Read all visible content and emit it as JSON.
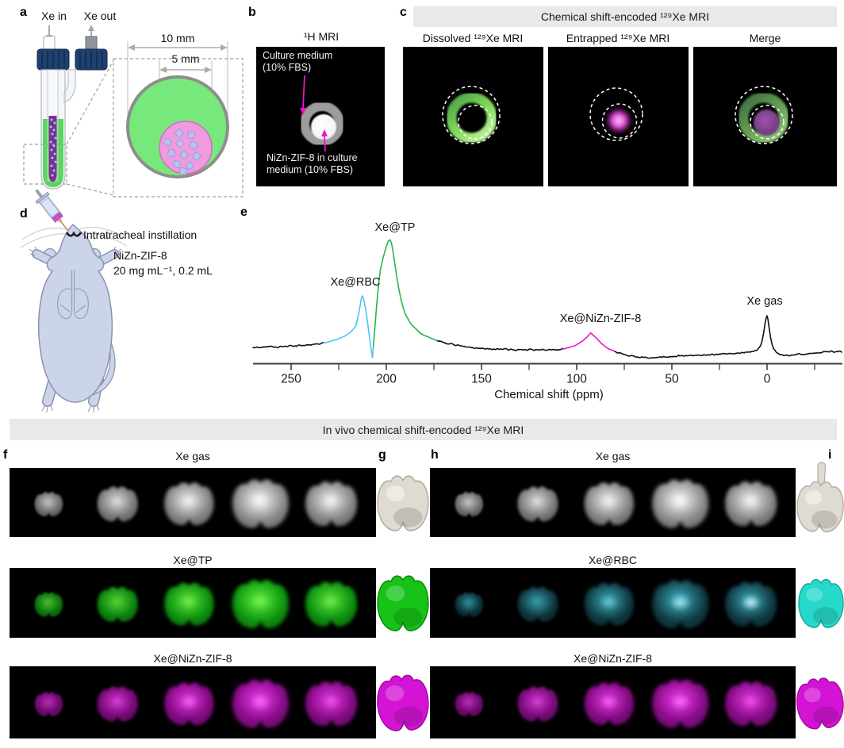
{
  "figure": {
    "panel_labels": {
      "a": "a",
      "b": "b",
      "c": "c",
      "d": "d",
      "e": "e",
      "f": "f",
      "g": "g",
      "h": "h",
      "i": "i"
    },
    "panel_a": {
      "xe_in": "Xe in",
      "xe_out": "Xe out",
      "outer_diameter": "10 mm",
      "inner_diameter": "5 mm"
    },
    "panel_b": {
      "title": "¹H MRI",
      "label_top_line1": "Culture medium",
      "label_top_line2": "(10% FBS)",
      "label_bottom_line1": "NiZn-ZIF-8 in culture",
      "label_bottom_line2": "medium (10% FBS)"
    },
    "panel_c": {
      "banner": "Chemical shift-encoded ¹²⁹Xe MRI",
      "col1": "Dissolved ¹²⁹Xe MRI",
      "col2": "Entrapped ¹²⁹Xe MRI",
      "col3": "Merge"
    },
    "panel_d": {
      "procedure": "Intratracheal instillation",
      "agent": "NiZn-ZIF-8",
      "dose": "20 mg mL⁻¹, 0.2 mL"
    },
    "in_vivo_banner": "In vivo chemical shift-encoded ¹²⁹Xe MRI",
    "left_block_rows": [
      {
        "title": "Xe gas",
        "color_key": "gas_gray"
      },
      {
        "title": "Xe@TP",
        "color_key": "tp_green"
      },
      {
        "title": "Xe@NiZn-ZIF-8",
        "color_key": "zif_magenta"
      }
    ],
    "right_block_rows": [
      {
        "title": "Xe gas",
        "color_key": "gas_gray"
      },
      {
        "title": "Xe@RBC",
        "color_key": "rbc_cyan"
      },
      {
        "title": "Xe@NiZn-ZIF-8",
        "color_key": "zif_magenta"
      }
    ]
  },
  "colors": {
    "banner_bg": "#e9e9e9",
    "mri_black": "#000000",
    "accent_magenta": "#e816cc",
    "spectrum_cyan": "#4ec3f0",
    "spectrum_green": "#28b44b",
    "spectrum_magenta": "#ee16c8",
    "tube_green": "#58d85c",
    "tube_purple": "#7c2f91",
    "inset_green": "#77e87b",
    "inset_pink": "#f09ae0",
    "cube_lavender": "#b9c2ee",
    "cap_blue": "#20406e",
    "mouse_body": "#ccd4ea"
  },
  "mri_palettes": {
    "gas_gray": {
      "core": "#fbfbfb",
      "edge": "#8f8f8f",
      "hot": "#ffffff"
    },
    "tp_green": {
      "core": "#64f23c",
      "edge": "#0c9b12",
      "hot": "#c8ffae"
    },
    "rbc_cyan": {
      "core": "#3fb7c9",
      "edge": "#123f48",
      "hot": "#d8f9ff"
    },
    "zif_magenta": {
      "core": "#ee3cee",
      "edge": "#8c0a8c",
      "hot": "#ff9bff"
    }
  },
  "model_palettes": {
    "gas_gray": {
      "fill": "#dfdbd1",
      "stroke": "#b3aea2"
    },
    "tp_green": {
      "fill": "#17c317",
      "stroke": "#0a8f0a"
    },
    "rbc_cyan": {
      "fill": "#27d9cb",
      "stroke": "#14a699"
    },
    "zif_magenta": {
      "fill": "#d414d4",
      "stroke": "#a30aa3"
    }
  },
  "mri_layout": {
    "slice_positions": [
      0.107,
      0.295,
      0.49,
      0.685,
      0.878
    ],
    "slice_scales": [
      0.5,
      0.72,
      0.88,
      1.0,
      0.92
    ],
    "slice_opacity": [
      0.78,
      0.88,
      0.96,
      1.0,
      0.96
    ],
    "hot_slices": {
      "gas_gray": [
        0,
        0.1,
        0.3,
        0.35,
        0.4
      ],
      "tp_green": [
        0,
        0,
        0.25,
        0.25,
        0.2
      ],
      "rbc_cyan": [
        0,
        0,
        0.35,
        0.7,
        0.9
      ],
      "zif_magenta": [
        0,
        0.15,
        0.5,
        0.55,
        0.3
      ]
    }
  },
  "chart_data": {
    "type": "line",
    "title": "",
    "xlabel": "Chemical shift (ppm)",
    "ylabel": "",
    "x_range": [
      270,
      -40
    ],
    "x_axis_reversed": true,
    "grid": false,
    "x_ticks": [
      250,
      200,
      150,
      100,
      50,
      0
    ],
    "x_minor_ticks": [
      225,
      175,
      125,
      75,
      25,
      -25
    ],
    "peaks": [
      {
        "label": "Xe@RBC",
        "ppm": 212,
        "relative_height": 0.5,
        "color": "#4ec3f0"
      },
      {
        "label": "Xe@TP",
        "ppm": 198,
        "relative_height": 1.0,
        "color": "#28b44b"
      },
      {
        "label": "Xe@NiZn-ZIF-8",
        "ppm": 93,
        "relative_height": 0.18,
        "color": "#ee16c8"
      },
      {
        "label": "Xe gas",
        "ppm": 0,
        "relative_height": 0.33,
        "color": "#111111"
      }
    ],
    "color_segments": [
      {
        "from": 233,
        "to": 207.3,
        "color": "#4ec3f0"
      },
      {
        "from": 207.3,
        "to": 173,
        "color": "#28b44b"
      },
      {
        "from": 107,
        "to": 80,
        "color": "#ee16c8"
      }
    ],
    "curve_anchors": [
      [
        270,
        7
      ],
      [
        266,
        7
      ],
      [
        262,
        8
      ],
      [
        258,
        7
      ],
      [
        254,
        8
      ],
      [
        250,
        9
      ],
      [
        246,
        9
      ],
      [
        242,
        10
      ],
      [
        238,
        11
      ],
      [
        235,
        12
      ],
      [
        232,
        13
      ],
      [
        229,
        15
      ],
      [
        226,
        17
      ],
      [
        223,
        20
      ],
      [
        220,
        24
      ],
      [
        218,
        28
      ],
      [
        216,
        34
      ],
      [
        215,
        44
      ],
      [
        214,
        56
      ],
      [
        213.2,
        68
      ],
      [
        212.5,
        72
      ],
      [
        211.5,
        64
      ],
      [
        210.5,
        50
      ],
      [
        209.5,
        32
      ],
      [
        208.5,
        14
      ],
      [
        207.8,
        2
      ],
      [
        207.3,
        -6
      ],
      [
        206.8,
        8
      ],
      [
        206,
        32
      ],
      [
        205,
        62
      ],
      [
        204,
        88
      ],
      [
        203,
        106
      ],
      [
        201.5,
        122
      ],
      [
        200,
        134
      ],
      [
        199,
        141
      ],
      [
        198,
        143
      ],
      [
        197.2,
        138
      ],
      [
        196.5,
        128
      ],
      [
        195.5,
        112
      ],
      [
        194.5,
        96
      ],
      [
        193.5,
        82
      ],
      [
        192.5,
        70
      ],
      [
        191.5,
        60
      ],
      [
        190,
        49
      ],
      [
        188,
        40
      ],
      [
        186,
        34
      ],
      [
        184,
        29
      ],
      [
        182,
        25
      ],
      [
        180,
        22
      ],
      [
        177,
        19
      ],
      [
        174,
        16
      ],
      [
        171,
        14
      ],
      [
        168,
        12
      ],
      [
        164,
        10
      ],
      [
        160,
        9
      ],
      [
        155,
        7
      ],
      [
        150,
        6
      ],
      [
        145,
        5
      ],
      [
        140,
        5
      ],
      [
        134,
        4
      ],
      [
        128,
        4
      ],
      [
        122,
        4
      ],
      [
        116,
        4
      ],
      [
        110,
        4
      ],
      [
        107,
        5
      ],
      [
        104,
        7
      ],
      [
        101,
        9
      ],
      [
        99,
        12
      ],
      [
        97,
        15
      ],
      [
        95,
        19
      ],
      [
        93.5,
        23
      ],
      [
        92.5,
        25
      ],
      [
        91,
        22
      ],
      [
        89,
        17
      ],
      [
        87,
        12
      ],
      [
        85,
        8
      ],
      [
        83,
        5
      ],
      [
        81,
        3
      ],
      [
        79,
        1
      ],
      [
        76,
        -1
      ],
      [
        72,
        -3
      ],
      [
        68,
        -5
      ],
      [
        64,
        -6
      ],
      [
        60,
        -6
      ],
      [
        56,
        -5
      ],
      [
        52,
        -5
      ],
      [
        48,
        -4
      ],
      [
        44,
        -4
      ],
      [
        40,
        -3
      ],
      [
        36,
        -3
      ],
      [
        32,
        -2
      ],
      [
        28,
        -2
      ],
      [
        24,
        -1
      ],
      [
        20,
        -1
      ],
      [
        16,
        0
      ],
      [
        12,
        0
      ],
      [
        9,
        1
      ],
      [
        7,
        2
      ],
      [
        5,
        4
      ],
      [
        4,
        7
      ],
      [
        3,
        12
      ],
      [
        2.2,
        20
      ],
      [
        1.5,
        30
      ],
      [
        1,
        38
      ],
      [
        0.5,
        44
      ],
      [
        0,
        47
      ],
      [
        -0.5,
        42
      ],
      [
        -1,
        33
      ],
      [
        -1.8,
        20
      ],
      [
        -2.6,
        11
      ],
      [
        -3.5,
        5
      ],
      [
        -5,
        1
      ],
      [
        -7,
        -2
      ],
      [
        -9,
        -3
      ],
      [
        -12,
        -3
      ],
      [
        -15,
        -2
      ],
      [
        -18,
        -2
      ],
      [
        -22,
        -1
      ],
      [
        -26,
        0
      ],
      [
        -30,
        1
      ],
      [
        -34,
        2
      ],
      [
        -38,
        2
      ],
      [
        -40,
        2
      ]
    ]
  }
}
